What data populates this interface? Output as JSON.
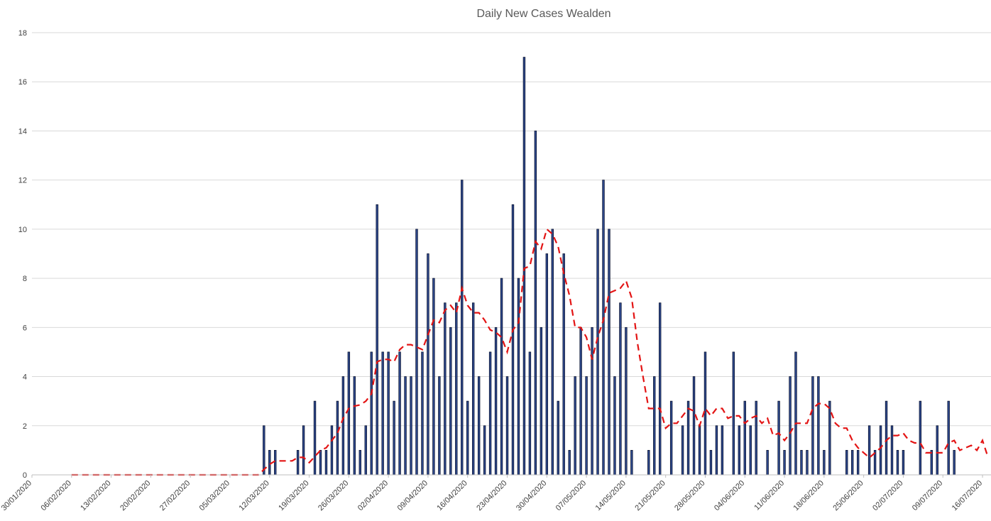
{
  "chart_data": {
    "type": "bar",
    "title": "Daily New Cases Wealden",
    "ylim": [
      0,
      18
    ],
    "y_ticks": [
      "0",
      "2",
      "4",
      "6",
      "8",
      "10",
      "12",
      "14",
      "16",
      "18"
    ],
    "x_tick_labels": [
      "30/01/2020",
      "06/02/2020",
      "13/02/2020",
      "20/02/2020",
      "27/02/2020",
      "05/03/2020",
      "12/03/2020",
      "19/03/2020",
      "26/03/2020",
      "02/04/2020",
      "09/04/2020",
      "16/04/2020",
      "23/04/2020",
      "30/04/2020",
      "07/05/2020",
      "14/05/2020",
      "21/05/2020",
      "28/05/2020",
      "04/06/2020",
      "11/06/2020",
      "18/06/2020",
      "25/06/2020",
      "02/07/2020",
      "09/07/2020",
      "16/07/2020"
    ],
    "x_start": "30/01/2020",
    "x_end": "17/07/2020",
    "grid": true,
    "legend": "none",
    "colors": {
      "bars": "#2f4a8f",
      "bar_edge": "#0d1633",
      "moving_average": "#e31414"
    },
    "series": [
      {
        "type": "bar",
        "values": [
          [
            "11/03/2020",
            2
          ],
          [
            "12/03/2020",
            1
          ],
          [
            "13/03/2020",
            1
          ],
          [
            "17/03/2020",
            1
          ],
          [
            "18/03/2020",
            2
          ],
          [
            "20/03/2020",
            3
          ],
          [
            "21/03/2020",
            1
          ],
          [
            "22/03/2020",
            1
          ],
          [
            "23/03/2020",
            2
          ],
          [
            "24/03/2020",
            3
          ],
          [
            "25/03/2020",
            4
          ],
          [
            "26/03/2020",
            5
          ],
          [
            "27/03/2020",
            4
          ],
          [
            "28/03/2020",
            1
          ],
          [
            "29/03/2020",
            2
          ],
          [
            "30/03/2020",
            5
          ],
          [
            "31/03/2020",
            11
          ],
          [
            "01/04/2020",
            5
          ],
          [
            "02/04/2020",
            5
          ],
          [
            "03/04/2020",
            3
          ],
          [
            "04/04/2020",
            5
          ],
          [
            "05/04/2020",
            4
          ],
          [
            "06/04/2020",
            4
          ],
          [
            "07/04/2020",
            10
          ],
          [
            "08/04/2020",
            5
          ],
          [
            "09/04/2020",
            9
          ],
          [
            "10/04/2020",
            8
          ],
          [
            "11/04/2020",
            4
          ],
          [
            "12/04/2020",
            7
          ],
          [
            "13/04/2020",
            6
          ],
          [
            "14/04/2020",
            7
          ],
          [
            "15/04/2020",
            12
          ],
          [
            "16/04/2020",
            3
          ],
          [
            "17/04/2020",
            7
          ],
          [
            "18/04/2020",
            4
          ],
          [
            "19/04/2020",
            2
          ],
          [
            "20/04/2020",
            5
          ],
          [
            "21/04/2020",
            6
          ],
          [
            "22/04/2020",
            8
          ],
          [
            "23/04/2020",
            4
          ],
          [
            "24/04/2020",
            11
          ],
          [
            "25/04/2020",
            8
          ],
          [
            "26/04/2020",
            17
          ],
          [
            "27/04/2020",
            5
          ],
          [
            "28/04/2020",
            14
          ],
          [
            "29/04/2020",
            6
          ],
          [
            "30/04/2020",
            9
          ],
          [
            "01/05/2020",
            10
          ],
          [
            "02/05/2020",
            3
          ],
          [
            "03/05/2020",
            9
          ],
          [
            "04/05/2020",
            1
          ],
          [
            "05/05/2020",
            4
          ],
          [
            "06/05/2020",
            6
          ],
          [
            "07/05/2020",
            4
          ],
          [
            "08/05/2020",
            6
          ],
          [
            "09/05/2020",
            10
          ],
          [
            "10/05/2020",
            12
          ],
          [
            "11/05/2020",
            10
          ],
          [
            "12/05/2020",
            4
          ],
          [
            "13/05/2020",
            7
          ],
          [
            "14/05/2020",
            6
          ],
          [
            "15/05/2020",
            1
          ],
          [
            "18/05/2020",
            1
          ],
          [
            "19/05/2020",
            4
          ],
          [
            "20/05/2020",
            7
          ],
          [
            "22/05/2020",
            3
          ],
          [
            "24/05/2020",
            2
          ],
          [
            "25/05/2020",
            3
          ],
          [
            "26/05/2020",
            4
          ],
          [
            "27/05/2020",
            2
          ],
          [
            "28/05/2020",
            5
          ],
          [
            "29/05/2020",
            1
          ],
          [
            "30/05/2020",
            2
          ],
          [
            "31/05/2020",
            2
          ],
          [
            "02/06/2020",
            5
          ],
          [
            "03/06/2020",
            2
          ],
          [
            "04/06/2020",
            3
          ],
          [
            "05/06/2020",
            2
          ],
          [
            "06/06/2020",
            3
          ],
          [
            "08/06/2020",
            1
          ],
          [
            "10/06/2020",
            3
          ],
          [
            "11/06/2020",
            1
          ],
          [
            "12/06/2020",
            4
          ],
          [
            "13/06/2020",
            5
          ],
          [
            "14/06/2020",
            1
          ],
          [
            "15/06/2020",
            1
          ],
          [
            "16/06/2020",
            4
          ],
          [
            "17/06/2020",
            4
          ],
          [
            "18/06/2020",
            1
          ],
          [
            "19/06/2020",
            3
          ],
          [
            "22/06/2020",
            1
          ],
          [
            "23/06/2020",
            1
          ],
          [
            "24/06/2020",
            1
          ],
          [
            "26/06/2020",
            2
          ],
          [
            "27/06/2020",
            1
          ],
          [
            "28/06/2020",
            2
          ],
          [
            "29/06/2020",
            3
          ],
          [
            "30/06/2020",
            2
          ],
          [
            "01/07/2020",
            1
          ],
          [
            "02/07/2020",
            1
          ],
          [
            "05/07/2020",
            3
          ],
          [
            "07/07/2020",
            1
          ],
          [
            "08/07/2020",
            2
          ],
          [
            "10/07/2020",
            3
          ],
          [
            "11/07/2020",
            1
          ]
        ]
      },
      {
        "type": "line",
        "style": "dashed",
        "values": [
          [
            "06/02/2020",
            0
          ],
          [
            "10/03/2020",
            0
          ],
          [
            "12/03/2020",
            0.43
          ],
          [
            "13/03/2020",
            0.57
          ],
          [
            "16/03/2020",
            0.57
          ],
          [
            "17/03/2020",
            0.71
          ],
          [
            "18/03/2020",
            0.71
          ],
          [
            "19/03/2020",
            0.5
          ],
          [
            "21/03/2020",
            1.0
          ],
          [
            "22/03/2020",
            1.1
          ],
          [
            "24/03/2020",
            1.7
          ],
          [
            "25/03/2020",
            2.3
          ],
          [
            "26/03/2020",
            2.7
          ],
          [
            "27/03/2020",
            2.8
          ],
          [
            "28/03/2020",
            2.85
          ],
          [
            "29/03/2020",
            3.0
          ],
          [
            "30/03/2020",
            3.3
          ],
          [
            "31/03/2020",
            4.6
          ],
          [
            "01/04/2020",
            4.7
          ],
          [
            "02/04/2020",
            4.7
          ],
          [
            "03/04/2020",
            4.6
          ],
          [
            "04/04/2020",
            5.1
          ],
          [
            "05/04/2020",
            5.3
          ],
          [
            "06/04/2020",
            5.3
          ],
          [
            "07/04/2020",
            5.2
          ],
          [
            "08/04/2020",
            5.1
          ],
          [
            "09/04/2020",
            5.7
          ],
          [
            "10/04/2020",
            6.3
          ],
          [
            "11/04/2020",
            6.2
          ],
          [
            "12/04/2020",
            6.7
          ],
          [
            "13/04/2020",
            6.9
          ],
          [
            "14/04/2020",
            6.6
          ],
          [
            "15/04/2020",
            7.6
          ],
          [
            "16/04/2020",
            6.9
          ],
          [
            "17/04/2020",
            6.6
          ],
          [
            "18/04/2020",
            6.6
          ],
          [
            "19/04/2020",
            6.3
          ],
          [
            "20/04/2020",
            5.9
          ],
          [
            "21/04/2020",
            5.8
          ],
          [
            "22/04/2020",
            5.6
          ],
          [
            "23/04/2020",
            5.0
          ],
          [
            "24/04/2020",
            5.9
          ],
          [
            "25/04/2020",
            6.2
          ],
          [
            "26/04/2020",
            8.4
          ],
          [
            "27/04/2020",
            8.5
          ],
          [
            "28/04/2020",
            9.5
          ],
          [
            "29/04/2020",
            9.2
          ],
          [
            "30/04/2020",
            10.0
          ],
          [
            "01/05/2020",
            9.8
          ],
          [
            "02/05/2020",
            9.3
          ],
          [
            "03/05/2020",
            8.2
          ],
          [
            "04/05/2020",
            7.3
          ],
          [
            "05/05/2020",
            6.0
          ],
          [
            "06/05/2020",
            6.0
          ],
          [
            "07/05/2020",
            5.6
          ],
          [
            "08/05/2020",
            4.7
          ],
          [
            "09/05/2020",
            5.6
          ],
          [
            "10/05/2020",
            6.3
          ],
          [
            "11/05/2020",
            7.4
          ],
          [
            "12/05/2020",
            7.5
          ],
          [
            "13/05/2020",
            7.6
          ],
          [
            "14/05/2020",
            7.9
          ],
          [
            "15/05/2020",
            7.2
          ],
          [
            "16/05/2020",
            5.4
          ],
          [
            "17/05/2020",
            4.0
          ],
          [
            "18/05/2020",
            2.7
          ],
          [
            "19/05/2020",
            2.7
          ],
          [
            "20/05/2020",
            2.7
          ],
          [
            "21/05/2020",
            1.9
          ],
          [
            "22/05/2020",
            2.1
          ],
          [
            "23/05/2020",
            2.1
          ],
          [
            "24/05/2020",
            2.4
          ],
          [
            "25/05/2020",
            2.7
          ],
          [
            "26/05/2020",
            2.6
          ],
          [
            "27/05/2020",
            2.0
          ],
          [
            "28/05/2020",
            2.7
          ],
          [
            "29/05/2020",
            2.4
          ],
          [
            "30/05/2020",
            2.7
          ],
          [
            "31/05/2020",
            2.7
          ],
          [
            "01/06/2020",
            2.3
          ],
          [
            "02/06/2020",
            2.4
          ],
          [
            "03/06/2020",
            2.4
          ],
          [
            "04/06/2020",
            2.1
          ],
          [
            "05/06/2020",
            2.3
          ],
          [
            "06/06/2020",
            2.4
          ],
          [
            "07/06/2020",
            2.1
          ],
          [
            "08/06/2020",
            2.3
          ],
          [
            "09/06/2020",
            1.6
          ],
          [
            "10/06/2020",
            1.7
          ],
          [
            "11/06/2020",
            1.4
          ],
          [
            "12/06/2020",
            1.7
          ],
          [
            "13/06/2020",
            2.1
          ],
          [
            "14/06/2020",
            2.1
          ],
          [
            "15/06/2020",
            2.1
          ],
          [
            "16/06/2020",
            2.7
          ],
          [
            "17/06/2020",
            2.9
          ],
          [
            "18/06/2020",
            2.9
          ],
          [
            "19/06/2020",
            2.7
          ],
          [
            "20/06/2020",
            2.1
          ],
          [
            "21/06/2020",
            1.9
          ],
          [
            "22/06/2020",
            1.9
          ],
          [
            "23/06/2020",
            1.4
          ],
          [
            "24/06/2020",
            1.1
          ],
          [
            "25/06/2020",
            0.9
          ],
          [
            "26/06/2020",
            0.7
          ],
          [
            "27/06/2020",
            0.9
          ],
          [
            "28/06/2020",
            1.1
          ],
          [
            "29/06/2020",
            1.4
          ],
          [
            "30/06/2020",
            1.6
          ],
          [
            "01/07/2020",
            1.6
          ],
          [
            "02/07/2020",
            1.7
          ],
          [
            "03/07/2020",
            1.4
          ],
          [
            "04/07/2020",
            1.3
          ],
          [
            "05/07/2020",
            1.3
          ],
          [
            "06/07/2020",
            0.9
          ],
          [
            "07/07/2020",
            0.9
          ],
          [
            "08/07/2020",
            0.9
          ],
          [
            "09/07/2020",
            0.9
          ],
          [
            "10/07/2020",
            1.3
          ],
          [
            "11/07/2020",
            1.4
          ],
          [
            "12/07/2020",
            1.0
          ],
          [
            "13/07/2020",
            1.1
          ],
          [
            "14/07/2020",
            1.2
          ],
          [
            "15/07/2020",
            1.0
          ],
          [
            "16/07/2020",
            1.4
          ],
          [
            "17/07/2020",
            0.7
          ]
        ]
      }
    ]
  }
}
